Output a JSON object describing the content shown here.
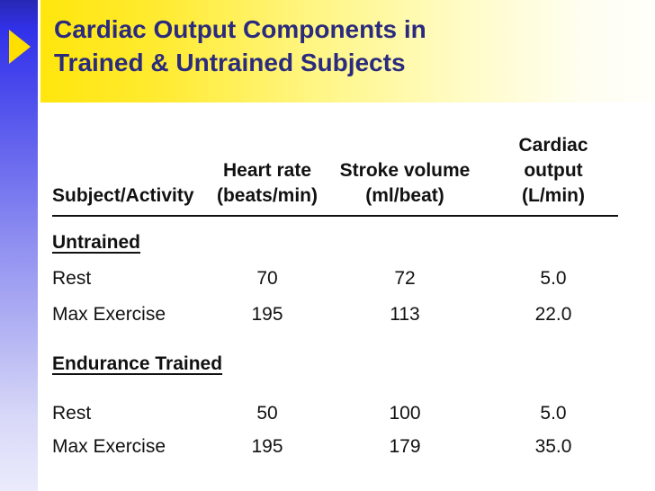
{
  "slide": {
    "title_line1": "Cardiac Output Components in",
    "title_line2": "Trained & Untrained Subjects"
  },
  "colors": {
    "left_bar_blue": "#3131e9",
    "title_band_yellow": "#ffe60d",
    "title_text_navy": "#2b2b7e",
    "arrow_yellow": "#ffdf00",
    "table_text": "#111111"
  },
  "icons": {
    "arrow_bullet": "right-pointing-triangle"
  },
  "table": {
    "header": {
      "subject": "Subject/Activity",
      "hr1": "Heart rate",
      "hr2": "(beats/min)",
      "sv1": "Stroke volume",
      "sv2": "(ml/beat)",
      "co1": "Cardiac output",
      "co2": "(L/min)"
    },
    "rows": [
      {
        "type": "section",
        "label": "Untrained"
      },
      {
        "type": "data",
        "cells": [
          "Rest",
          "70",
          "72",
          "5.0"
        ]
      },
      {
        "type": "data",
        "cells": [
          "Max Exercise",
          "195",
          "113",
          "22.0"
        ]
      },
      {
        "type": "section",
        "label": "Endurance Trained"
      },
      {
        "type": "data",
        "cells": [
          "Rest",
          "50",
          "100",
          "5.0"
        ]
      },
      {
        "type": "data",
        "cells": [
          "Max Exercise",
          "195",
          "179",
          "35.0"
        ]
      }
    ]
  }
}
